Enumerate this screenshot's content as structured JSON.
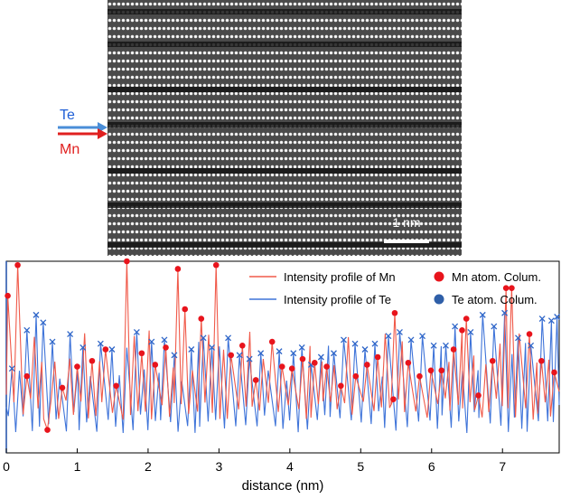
{
  "stem_panel": {
    "arrow_labels": [
      {
        "text": "Te",
        "color": "#1f5fd6"
      },
      {
        "text": "Mn",
        "color": "#e0201f"
      }
    ],
    "scale_bar": {
      "label": "1 nm",
      "length_nm": 1
    }
  },
  "chart_data": {
    "type": "line",
    "xlabel": "distance (nm)",
    "ylabel": "",
    "xlim": [
      0,
      7.8
    ],
    "x_ticks": [
      "0",
      "1",
      "2",
      "3",
      "4",
      "5",
      "6",
      "7"
    ],
    "grid": false,
    "legend_position": "top-right",
    "colors": {
      "mn_line": "#f05a4a",
      "te_line": "#3f74d9",
      "mn_marker": "#e8141c",
      "te_marker": "#2f66c8"
    },
    "series": [
      {
        "name": "Intensity profile of Mn",
        "kind": "line",
        "color": "#f05a4a"
      },
      {
        "name": "Intensity profile of Te",
        "kind": "line",
        "color": "#3f74d9"
      },
      {
        "name": "Mn atom. Colum.",
        "kind": "marker",
        "color": "#e8141c",
        "x": [
          0.02,
          0.16,
          0.29,
          0.58,
          0.79,
          1.0,
          1.21,
          1.4,
          1.55,
          1.7,
          1.91,
          2.1,
          2.25,
          2.42,
          2.52,
          2.75,
          2.96,
          3.17,
          3.33,
          3.52,
          3.75,
          3.89,
          4.03,
          4.18,
          4.35,
          4.52,
          4.72,
          4.93,
          5.09,
          5.24,
          5.46,
          5.48,
          5.67,
          5.83,
          5.99,
          6.14,
          6.31,
          6.43,
          6.49,
          6.66,
          6.86,
          7.05,
          7.13,
          7.38,
          7.55,
          7.73
        ],
        "y": [
          0.82,
          0.98,
          0.4,
          0.12,
          0.34,
          0.45,
          0.48,
          0.54,
          0.35,
          1.0,
          0.52,
          0.46,
          0.55,
          0.96,
          0.75,
          0.7,
          0.98,
          0.51,
          0.56,
          0.38,
          0.58,
          0.45,
          0.44,
          0.49,
          0.47,
          0.45,
          0.35,
          0.4,
          0.46,
          0.5,
          0.28,
          0.73,
          0.47,
          0.4,
          0.43,
          0.43,
          0.54,
          0.64,
          0.7,
          0.3,
          0.48,
          0.86,
          0.86,
          0.62,
          0.48,
          0.42
        ]
      },
      {
        "name": "Te atom. Colum.",
        "kind": "marker",
        "color": "#2f66c8",
        "x": [
          0.08,
          0.29,
          0.42,
          0.52,
          0.65,
          0.9,
          1.08,
          1.33,
          1.49,
          1.84,
          2.05,
          2.23,
          2.37,
          2.61,
          2.78,
          2.9,
          3.13,
          3.29,
          3.43,
          3.59,
          3.85,
          4.05,
          4.17,
          4.3,
          4.44,
          4.62,
          4.76,
          4.92,
          5.06,
          5.2,
          5.39,
          5.55,
          5.71,
          5.87,
          6.03,
          6.2,
          6.33,
          6.55,
          6.72,
          6.88,
          7.03,
          7.22,
          7.4,
          7.56,
          7.69,
          7.77
        ],
        "y": [
          0.44,
          0.64,
          0.72,
          0.68,
          0.58,
          0.62,
          0.55,
          0.57,
          0.54,
          0.63,
          0.58,
          0.59,
          0.51,
          0.54,
          0.6,
          0.55,
          0.6,
          0.51,
          0.49,
          0.52,
          0.53,
          0.52,
          0.55,
          0.46,
          0.5,
          0.52,
          0.59,
          0.57,
          0.54,
          0.57,
          0.61,
          0.63,
          0.59,
          0.61,
          0.56,
          0.56,
          0.66,
          0.63,
          0.72,
          0.66,
          0.73,
          0.6,
          0.56,
          0.7,
          0.69,
          0.71
        ]
      }
    ]
  }
}
